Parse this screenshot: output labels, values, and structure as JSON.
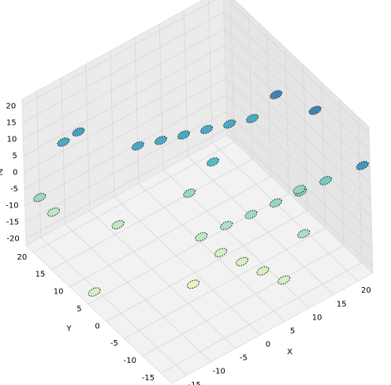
{
  "chart_data": {
    "type": "scatter3d",
    "x_label": "X",
    "y_label": "Y",
    "z_label": "Z",
    "xlim": [
      -18,
      23
    ],
    "ylim": [
      -18,
      22
    ],
    "zlim": [
      -22,
      22
    ],
    "xticks": [
      -15,
      -10,
      -5,
      0,
      5,
      10,
      15,
      20
    ],
    "yticks": [
      -15,
      -10,
      -5,
      0,
      5,
      10,
      15,
      20
    ],
    "zticks": [
      -20,
      -15,
      -10,
      -5,
      0,
      5,
      10,
      15,
      20
    ],
    "grid": true,
    "cmap": [
      "#f7fcb9",
      "#41b6c4",
      "#225ea8"
    ],
    "series": [
      {
        "x": [
          -1.9,
          1.8,
          5.5,
          9.2,
          12.9,
          16.6,
          2.7,
          6.6,
          10.4,
          14.3,
          18.1,
          22,
          4.4,
          5.9,
          7.3,
          8.8,
          -15,
          -11,
          -13,
          21.4,
          18.5,
          22.2,
          4.9,
          -17.3,
          -2.6,
          7.8,
          -6.4,
          19.6,
          -9,
          15
        ],
        "y": [
          12.3,
          11,
          9.7,
          8.4,
          7.1,
          5.8,
          1.6,
          -0.1,
          -1.8,
          -3.4,
          -5.1,
          -6.8,
          -1.4,
          -5.2,
          -9,
          -12.8,
          22,
          20.5,
          21,
          -5.2,
          1.6,
          -17,
          7.7,
          4.1,
          -3.2,
          4.9,
          12.2,
          -2.7,
          19,
          -10
        ],
        "z": [
          5,
          5,
          5,
          5,
          5,
          5,
          -15,
          -13,
          -11,
          -9,
          -7,
          -5,
          -18,
          -18,
          -18,
          -18,
          -10,
          5,
          -15,
          15,
          15,
          10,
          -10,
          -18,
          -20,
          0,
          -15,
          -10,
          8,
          -12
        ]
      }
    ]
  }
}
